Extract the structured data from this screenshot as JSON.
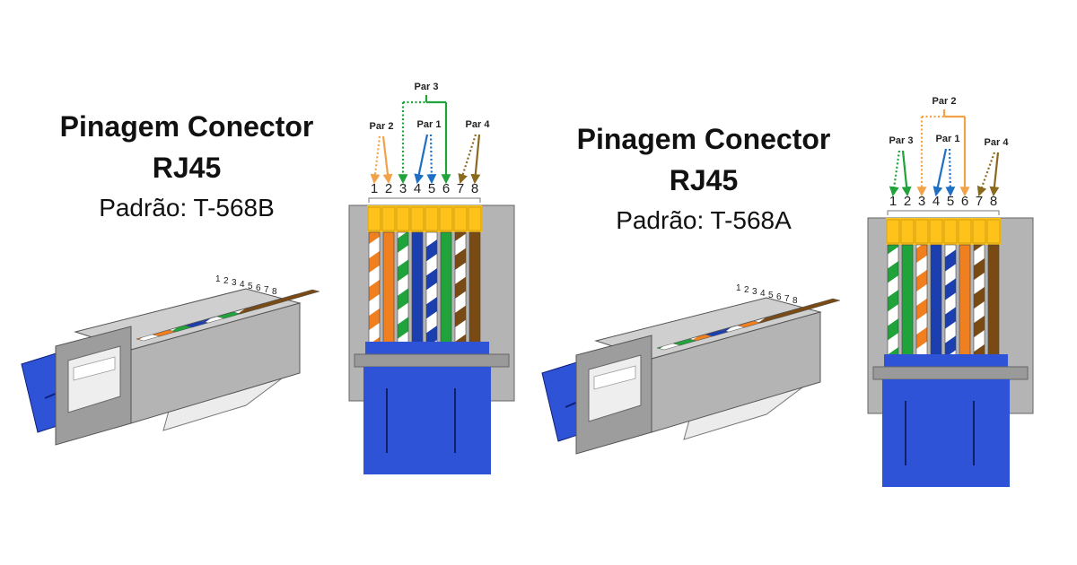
{
  "colors": {
    "orange": "#F07F1F",
    "green": "#1FA33A",
    "blue": "#1C3FAF",
    "brown": "#7A4A14",
    "white": "#FFFFFF",
    "gold": "#FFC21A",
    "gray": "#B4B4B4",
    "cable": "#2E53D6",
    "pair1": "#1F6FC4",
    "pair2": "#F2A34A",
    "pair3": "#1FA33A",
    "pair4": "#8A6A1F"
  },
  "t568b": {
    "title": "Pinagem Conector",
    "subtitle": "RJ45",
    "standard": "Padrão: T-568B",
    "pins": [
      "1",
      "2",
      "3",
      "4",
      "5",
      "6",
      "7",
      "8"
    ],
    "pair_labels": {
      "par1": "Par 1",
      "par2": "Par 2",
      "par3": "Par 3",
      "par4": "Par 4"
    },
    "wires": [
      {
        "base": "orange",
        "striped": true
      },
      {
        "base": "orange",
        "striped": false
      },
      {
        "base": "green",
        "striped": true
      },
      {
        "base": "blue",
        "striped": false
      },
      {
        "base": "blue",
        "striped": true
      },
      {
        "base": "green",
        "striped": false
      },
      {
        "base": "brown",
        "striped": true
      },
      {
        "base": "brown",
        "striped": false
      }
    ]
  },
  "t568a": {
    "title": "Pinagem Conector",
    "subtitle": "RJ45",
    "standard": "Padrão: T-568A",
    "pins": [
      "1",
      "2",
      "3",
      "4",
      "5",
      "6",
      "7",
      "8"
    ],
    "pair_labels": {
      "par1": "Par 1",
      "par2": "Par 2",
      "par3": "Par 3",
      "par4": "Par 4"
    },
    "wires": [
      {
        "base": "green",
        "striped": true
      },
      {
        "base": "green",
        "striped": false
      },
      {
        "base": "orange",
        "striped": true
      },
      {
        "base": "blue",
        "striped": false
      },
      {
        "base": "blue",
        "striped": true
      },
      {
        "base": "orange",
        "striped": false
      },
      {
        "base": "brown",
        "striped": true
      },
      {
        "base": "brown",
        "striped": false
      }
    ]
  }
}
